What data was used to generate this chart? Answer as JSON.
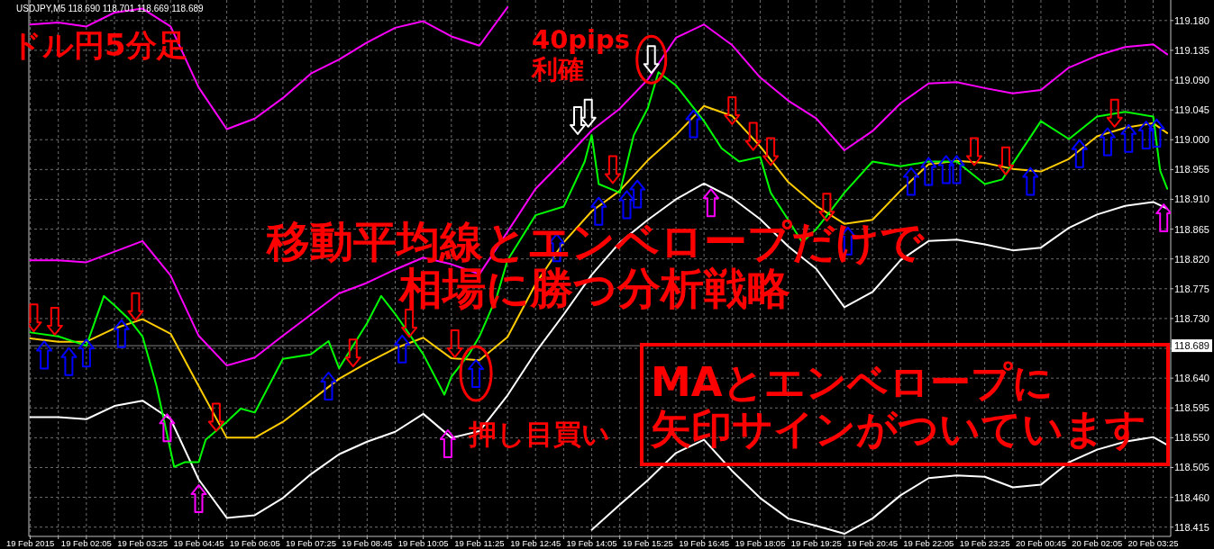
{
  "chart_data": {
    "type": "line",
    "title": "ドル円5分足",
    "subtitle": "移動平均線とエンベロープだけで相場に勝つ分析戦略",
    "annotations": [
      "USDJPY,M5  118.690 118.701 118.669 118.689",
      {
        "text": "40pips\n利確",
        "x": "2015-02-19T15:30",
        "y": 119.121
      },
      {
        "text": "押し目買い",
        "x": "2015-02-19T11:20",
        "y": 118.647
      },
      "MAとエンベロープに",
      "矢印サインがついています"
    ],
    "xlim": [
      "2015-02-19T00:43",
      "2015-02-20T03:50"
    ],
    "ylim": [
      118.401,
      119.211
    ],
    "grid": true,
    "xticks": [
      {
        "value": "2015-02-19T00:45",
        "label": "19 Feb 2015"
      },
      {
        "value": "2015-02-19T01:25",
        "label": null
      },
      {
        "value": "2015-02-19T02:05",
        "label": "19 Feb 02:05"
      },
      {
        "value": "2015-02-19T02:45",
        "label": null
      },
      {
        "value": "2015-02-19T03:25",
        "label": "19 Feb 03:25"
      },
      {
        "value": "2015-02-19T04:05",
        "label": null
      },
      {
        "value": "2015-02-19T04:45",
        "label": "19 Feb 04:45"
      },
      {
        "value": "2015-02-19T05:25",
        "label": null
      },
      {
        "value": "2015-02-19T06:05",
        "label": "19 Feb 06:05"
      },
      {
        "value": "2015-02-19T06:45",
        "label": null
      },
      {
        "value": "2015-02-19T07:25",
        "label": "19 Feb 07:25"
      },
      {
        "value": "2015-02-19T08:05",
        "label": null
      },
      {
        "value": "2015-02-19T08:45",
        "label": "19 Feb 08:45"
      },
      {
        "value": "2015-02-19T09:25",
        "label": null
      },
      {
        "value": "2015-02-19T10:05",
        "label": "19 Feb 10:05"
      },
      {
        "value": "2015-02-19T10:45",
        "label": null
      },
      {
        "value": "2015-02-19T11:25",
        "label": "19 Feb 11:25"
      },
      {
        "value": "2015-02-19T12:05",
        "label": null
      },
      {
        "value": "2015-02-19T12:45",
        "label": "19 Feb 12:45"
      },
      {
        "value": "2015-02-19T13:25",
        "label": null
      },
      {
        "value": "2015-02-19T14:05",
        "label": "19 Feb 14:05"
      },
      {
        "value": "2015-02-19T14:45",
        "label": null
      },
      {
        "value": "2015-02-19T15:25",
        "label": "19 Feb 15:25"
      },
      {
        "value": "2015-02-19T16:05",
        "label": null
      },
      {
        "value": "2015-02-19T16:45",
        "label": "19 Feb 16:45"
      },
      {
        "value": "2015-02-19T17:25",
        "label": null
      },
      {
        "value": "2015-02-19T18:05",
        "label": "19 Feb 18:05"
      },
      {
        "value": "2015-02-19T18:45",
        "label": null
      },
      {
        "value": "2015-02-19T19:25",
        "label": "19 Feb 19:25"
      },
      {
        "value": "2015-02-19T20:05",
        "label": null
      },
      {
        "value": "2015-02-19T20:45",
        "label": "19 Feb 20:45"
      },
      {
        "value": "2015-02-19T21:25",
        "label": null
      },
      {
        "value": "2015-02-19T22:05",
        "label": "19 Feb 22:05"
      },
      {
        "value": "2015-02-19T22:45",
        "label": null
      },
      {
        "value": "2015-02-19T23:25",
        "label": "19 Feb 23:25"
      },
      {
        "value": "2015-02-20T00:05",
        "label": null
      },
      {
        "value": "2015-02-20T00:45",
        "label": "20 Feb 00:45"
      },
      {
        "value": "2015-02-20T01:25",
        "label": null
      },
      {
        "value": "2015-02-20T02:05",
        "label": "20 Feb 02:05"
      },
      {
        "value": "2015-02-20T02:45",
        "label": null
      },
      {
        "value": "2015-02-20T03:25",
        "label": "20 Feb 03:25"
      }
    ],
    "yticks": [
      {
        "value": 119.18,
        "label": "119.180"
      },
      {
        "value": 119.135,
        "label": "119.135"
      },
      {
        "value": 119.09,
        "label": "119.090"
      },
      {
        "value": 119.045,
        "label": "119.045"
      },
      {
        "value": 119.0,
        "label": "119.000"
      },
      {
        "value": 118.955,
        "label": "118.955"
      },
      {
        "value": 118.91,
        "label": "118.910"
      },
      {
        "value": 118.865,
        "label": "118.865"
      },
      {
        "value": 118.82,
        "label": "118.820"
      },
      {
        "value": 118.775,
        "label": "118.775"
      },
      {
        "value": 118.73,
        "label": "118.730"
      },
      {
        "value": 118.685,
        "label": null
      },
      {
        "value": 118.64,
        "label": "118.640"
      },
      {
        "value": 118.595,
        "label": "118.595"
      },
      {
        "value": 118.55,
        "label": "118.550"
      },
      {
        "value": 118.505,
        "label": "118.505"
      },
      {
        "value": 118.46,
        "label": "118.460"
      },
      {
        "value": 118.415,
        "label": "118.415"
      }
    ],
    "ref_lines": [
      {
        "axis": "y",
        "value": 118.689,
        "label": "118.689",
        "color": "#808080"
      }
    ],
    "x": [
      "2015-02-19T00:45",
      "2015-02-19T01:25",
      "2015-02-19T02:05",
      "2015-02-19T02:45",
      "2015-02-19T03:25",
      "2015-02-19T04:05",
      "2015-02-19T04:45",
      "2015-02-19T05:25",
      "2015-02-19T06:05",
      "2015-02-19T06:45",
      "2015-02-19T07:25",
      "2015-02-19T08:05",
      "2015-02-19T08:45",
      "2015-02-19T09:25",
      "2015-02-19T10:05",
      "2015-02-19T10:45",
      "2015-02-19T11:25",
      "2015-02-19T12:05",
      "2015-02-19T12:45",
      "2015-02-19T13:25",
      "2015-02-19T14:05",
      "2015-02-19T14:45",
      "2015-02-19T15:25",
      "2015-02-19T16:05",
      "2015-02-19T16:45",
      "2015-02-19T17:25",
      "2015-02-19T18:05",
      "2015-02-19T18:45",
      "2015-02-19T19:25",
      "2015-02-19T20:05",
      "2015-02-19T20:45",
      "2015-02-19T21:25",
      "2015-02-19T22:05",
      "2015-02-19T22:45",
      "2015-02-19T23:25",
      "2015-02-20T00:05",
      "2015-02-20T00:45",
      "2015-02-20T01:25",
      "2015-02-20T02:05",
      "2015-02-20T02:45",
      "2015-02-20T03:25",
      "2015-02-20T03:45"
    ],
    "series": [
      {
        "color": "#ff00ff",
        "values": [
          119.174,
          119.177,
          119.171,
          119.192,
          119.198,
          119.171,
          119.079,
          119.016,
          119.032,
          119.063,
          119.1,
          119.121,
          119.147,
          119.169,
          119.179,
          119.156,
          119.142,
          119.2,
          null,
          null,
          null,
          null,
          null,
          null,
          null,
          null,
          null,
          null,
          null,
          null,
          null,
          null,
          null,
          null,
          null,
          null,
          null,
          null,
          null,
          null,
          null,
          null
        ]
      },
      {
        "color": "#ff00ff",
        "values": [
          118.818,
          118.818,
          118.815,
          118.831,
          118.847,
          118.795,
          118.704,
          118.659,
          118.671,
          118.704,
          118.736,
          118.768,
          118.784,
          118.804,
          118.822,
          118.812,
          118.797,
          118.861,
          118.926,
          118.969,
          119.014,
          119.047,
          119.091,
          119.154,
          119.174,
          119.143,
          119.094,
          119.059,
          119.032,
          118.984,
          119.013,
          119.055,
          119.085,
          119.087,
          119.078,
          119.07,
          119.075,
          119.109,
          119.127,
          119.14,
          119.144,
          119.129
        ]
      },
      {
        "color": "#ffffff",
        "values": [
          118.581,
          118.581,
          118.578,
          118.598,
          118.606,
          118.578,
          118.487,
          118.429,
          118.433,
          118.459,
          118.495,
          118.525,
          118.544,
          118.559,
          118.586,
          118.55,
          118.56,
          118.614,
          118.679,
          118.736,
          118.796,
          118.845,
          118.879,
          118.91,
          118.934,
          118.912,
          118.88,
          118.839,
          118.805,
          118.747,
          118.77,
          118.818,
          118.847,
          118.849,
          118.842,
          118.833,
          118.837,
          118.867,
          118.887,
          118.9,
          118.906,
          118.896
        ]
      },
      {
        "color": "#ffffff",
        "values": [
          null,
          null,
          null,
          null,
          null,
          null,
          null,
          null,
          null,
          null,
          null,
          null,
          null,
          null,
          null,
          null,
          null,
          null,
          null,
          null,
          118.411,
          118.449,
          118.486,
          118.527,
          118.547,
          118.5,
          118.459,
          118.428,
          118.417,
          118.405,
          118.428,
          118.463,
          118.489,
          118.493,
          118.491,
          118.475,
          118.479,
          118.513,
          118.532,
          118.544,
          118.551,
          118.539
        ]
      },
      {
        "color": "#ffcc00",
        "values": [
          118.7,
          118.695,
          118.695,
          118.715,
          118.729,
          118.707,
          118.628,
          118.55,
          118.55,
          118.574,
          118.606,
          118.639,
          118.663,
          118.685,
          118.701,
          118.67,
          118.667,
          118.702,
          118.782,
          118.845,
          118.892,
          118.923,
          118.969,
          119.007,
          119.051,
          119.036,
          118.99,
          118.936,
          118.9,
          118.873,
          118.879,
          118.923,
          118.963,
          118.968,
          118.965,
          118.956,
          118.952,
          118.971,
          119.005,
          119.018,
          119.025,
          119.01
        ]
      },
      {
        "color": "#00ff00",
        "x": [
          "2015-02-19T00:45",
          "2015-02-19T01:25",
          "2015-02-19T02:05",
          "2015-02-19T02:30",
          "2015-02-19T02:45",
          "2015-02-19T03:05",
          "2015-02-19T03:25",
          "2015-02-19T03:45",
          "2015-02-19T04:10",
          "2015-02-19T04:25",
          "2015-02-19T04:45",
          "2015-02-19T04:55",
          "2015-02-19T05:25",
          "2015-02-19T05:45",
          "2015-02-19T06:05",
          "2015-02-19T06:45",
          "2015-02-19T07:25",
          "2015-02-19T07:50",
          "2015-02-19T08:05",
          "2015-02-19T08:45",
          "2015-02-19T09:05",
          "2015-02-19T09:25",
          "2015-02-19T10:05",
          "2015-02-19T10:35",
          "2015-02-19T10:45",
          "2015-02-19T11:10",
          "2015-02-19T11:25",
          "2015-02-19T11:50",
          "2015-02-19T12:05",
          "2015-02-19T12:45",
          "2015-02-19T13:25",
          "2015-02-19T13:55",
          "2015-02-19T14:05",
          "2015-02-19T14:15",
          "2015-02-19T14:45",
          "2015-02-19T15:05",
          "2015-02-19T15:25",
          "2015-02-19T15:40",
          "2015-02-19T16:05",
          "2015-02-19T16:20",
          "2015-02-19T16:45",
          "2015-02-19T17:10",
          "2015-02-19T17:35",
          "2015-02-19T18:05",
          "2015-02-19T18:20",
          "2015-02-19T18:45",
          "2015-02-19T19:05",
          "2015-02-19T19:25",
          "2015-02-19T19:45",
          "2015-02-19T20:05",
          "2015-02-19T20:45",
          "2015-02-19T21:25",
          "2015-02-19T22:05",
          "2015-02-19T22:45",
          "2015-02-19T23:25",
          "2015-02-19T23:50",
          "2015-02-20T00:45",
          "2015-02-20T01:25",
          "2015-02-20T02:05",
          "2015-02-20T02:45",
          "2015-02-20T03:25",
          "2015-02-20T03:35",
          "2015-02-20T03:45"
        ],
        "values": [
          118.709,
          118.703,
          118.689,
          118.764,
          118.75,
          118.73,
          118.703,
          118.628,
          118.506,
          118.513,
          118.513,
          118.547,
          118.574,
          118.594,
          118.588,
          118.669,
          118.676,
          118.696,
          118.655,
          118.723,
          118.764,
          118.737,
          118.676,
          118.615,
          118.642,
          118.676,
          118.703,
          118.764,
          118.818,
          118.886,
          118.899,
          118.967,
          119.007,
          118.933,
          118.92,
          119.007,
          119.048,
          119.102,
          119.082,
          119.062,
          119.028,
          118.987,
          118.967,
          118.974,
          118.92,
          118.879,
          118.845,
          118.865,
          118.892,
          118.92,
          118.967,
          118.96,
          118.967,
          118.967,
          118.933,
          118.94,
          119.028,
          119.001,
          119.035,
          119.042,
          119.035,
          118.953,
          118.926
        ]
      },
      {
        "type": "scatter",
        "color": "#0000ff",
        "marker": "triangle",
        "x": [
          "2015-02-19T01:05",
          "2015-02-19T01:40",
          "2015-02-19T02:05",
          "2015-02-19T02:55",
          "2015-02-19T07:50",
          "2015-02-19T09:35",
          "2015-02-19T11:20",
          "2015-02-19T13:15",
          "2015-02-19T14:15",
          "2015-02-19T14:55",
          "2015-02-19T15:10",
          "2015-02-19T16:30",
          "2015-02-19T20:10",
          "2015-02-19T21:40",
          "2015-02-19T22:05",
          "2015-02-19T22:30",
          "2015-02-19T22:45",
          "2015-02-20T00:30",
          "2015-02-20T01:40",
          "2015-02-20T02:20",
          "2015-02-20T02:50",
          "2015-02-20T03:15",
          "2015-02-20T03:30"
        ],
        "values": [
          118.675,
          118.665,
          118.678,
          118.707,
          118.628,
          118.684,
          118.647,
          118.837,
          118.892,
          118.902,
          118.918,
          119.024,
          118.847,
          118.937,
          118.952,
          118.955,
          118.955,
          118.937,
          118.979,
          118.997,
          119.002,
          119.007,
          119.01
        ]
      },
      {
        "type": "scatter",
        "color": "#ff0000",
        "marker": "triangle-down",
        "x": [
          "2015-02-19T00:50",
          "2015-02-19T01:20",
          "2015-02-19T03:15",
          "2015-02-19T05:10",
          "2015-02-19T08:25",
          "2015-02-19T09:45",
          "2015-02-19T10:50",
          "2015-02-19T14:35",
          "2015-02-19T17:25",
          "2015-02-19T17:55",
          "2015-02-19T18:20",
          "2015-02-19T19:40",
          "2015-02-19T23:10",
          "2015-02-19T23:55",
          "2015-02-20T02:30"
        ],
        "values": [
          118.731,
          118.726,
          118.748,
          118.581,
          118.678,
          118.723,
          118.692,
          118.955,
          119.044,
          119.005,
          118.982,
          118.898,
          118.982,
          118.968,
          119.04
        ]
      },
      {
        "type": "scatter",
        "color": "#ff00ff",
        "marker": "triangle",
        "x": [
          "2015-02-19T04:00",
          "2015-02-19T04:45",
          "2015-02-19T10:40",
          "2015-02-19T16:55",
          "2015-02-20T03:40"
        ],
        "values": [
          118.565,
          118.458,
          118.541,
          118.905,
          118.882
        ]
      },
      {
        "type": "scatter",
        "color": "#ffffff",
        "marker": "triangle-down",
        "x": [
          "2015-02-19T13:45",
          "2015-02-19T14:00",
          "2015-02-19T15:30"
        ],
        "values": [
          119.029,
          119.04,
          119.121
        ]
      }
    ]
  }
}
